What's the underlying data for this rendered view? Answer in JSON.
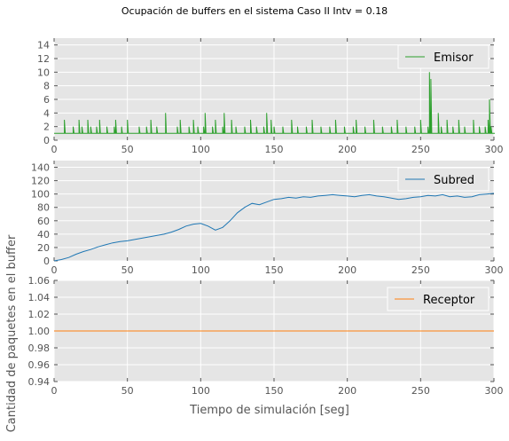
{
  "title": "Ocupación de buffers en el sistema Caso II Intv = 0.18",
  "xlabel": "Tiempo de simulación [seg]",
  "ylabel": "Cantidad de paquetes en el buffer",
  "chart_data": [
    {
      "type": "line",
      "series": [
        {
          "name": "Emisor",
          "color": "#2ca02c",
          "x": [
            0,
            6,
            7,
            8,
            12,
            13,
            14,
            15,
            17,
            18,
            19,
            20,
            22,
            23,
            24,
            25,
            26,
            28,
            29,
            30,
            31,
            35,
            36,
            37,
            40,
            41,
            42,
            44,
            45,
            46,
            48,
            49,
            50,
            52,
            53,
            55,
            58,
            60,
            62,
            63,
            65,
            66,
            67,
            68,
            70,
            74,
            75,
            76,
            78,
            80,
            84,
            85,
            86,
            88,
            90,
            92,
            93,
            94,
            95,
            96,
            98,
            99,
            100,
            102,
            103,
            104,
            106,
            108,
            110,
            112,
            114,
            115,
            116,
            118,
            120,
            121,
            122,
            124,
            126,
            128,
            130,
            132,
            133,
            134,
            136,
            138,
            140,
            142,
            143,
            144,
            145,
            146,
            147,
            148,
            150,
            152,
            154,
            156,
            158,
            160,
            162,
            163,
            164,
            166,
            168,
            170,
            172,
            174,
            176,
            178,
            180,
            182,
            184,
            186,
            188,
            190,
            192,
            194,
            196,
            198,
            200,
            202,
            204,
            206,
            208,
            210,
            212,
            214,
            216,
            218,
            220,
            222,
            224,
            226,
            228,
            230,
            232,
            234,
            236,
            238,
            240,
            242,
            244,
            246,
            248,
            250,
            252,
            254,
            255,
            256,
            257,
            258,
            260,
            262,
            264,
            266,
            268,
            270,
            272,
            274,
            276,
            278,
            280,
            282,
            284,
            286,
            288,
            290,
            292,
            294,
            295,
            296,
            297,
            298,
            300
          ],
          "y": [
            1,
            1,
            3,
            1,
            1,
            2,
            1,
            1,
            3,
            1,
            2,
            1,
            1,
            3,
            1,
            2,
            1,
            1,
            2,
            1,
            3,
            1,
            2,
            1,
            1,
            2,
            3,
            1,
            1,
            2,
            1,
            1,
            3,
            1,
            1,
            1,
            2,
            1,
            1,
            2,
            1,
            3,
            1,
            1,
            2,
            1,
            1,
            4,
            1,
            1,
            2,
            1,
            3,
            1,
            1,
            2,
            1,
            1,
            3,
            1,
            2,
            1,
            1,
            2,
            4,
            1,
            1,
            2,
            3,
            1,
            1,
            2,
            4,
            1,
            1,
            3,
            1,
            2,
            1,
            1,
            2,
            1,
            1,
            3,
            1,
            2,
            1,
            1,
            2,
            1,
            4,
            1,
            1,
            3,
            2,
            1,
            1,
            2,
            1,
            1,
            3,
            1,
            1,
            2,
            1,
            1,
            2,
            1,
            3,
            1,
            1,
            2,
            1,
            1,
            2,
            1,
            3,
            1,
            1,
            2,
            1,
            1,
            2,
            3,
            1,
            1,
            2,
            1,
            1,
            3,
            1,
            1,
            2,
            1,
            1,
            2,
            1,
            3,
            1,
            1,
            2,
            1,
            1,
            2,
            1,
            3,
            1,
            1,
            2,
            10,
            9,
            1,
            1,
            4,
            2,
            1,
            3,
            1,
            2,
            1,
            3,
            1,
            2,
            1,
            1,
            3,
            1,
            2,
            1,
            2,
            1,
            3,
            6,
            2,
            1
          ],
          "legend_position": "top-right"
        }
      ],
      "xlim": [
        0,
        300
      ],
      "ylim": [
        0,
        15
      ],
      "yticks": [
        0,
        2,
        4,
        6,
        8,
        10,
        12,
        14
      ],
      "xticks": [
        0,
        50,
        100,
        150,
        200,
        250,
        300
      ],
      "grid": true
    },
    {
      "type": "line",
      "series": [
        {
          "name": "Subred",
          "color": "#1f77b4",
          "x": [
            0,
            5,
            10,
            15,
            20,
            25,
            30,
            35,
            40,
            45,
            50,
            55,
            60,
            65,
            70,
            75,
            80,
            85,
            90,
            95,
            100,
            105,
            110,
            115,
            120,
            125,
            130,
            135,
            140,
            145,
            150,
            155,
            160,
            165,
            170,
            175,
            180,
            185,
            190,
            195,
            200,
            205,
            210,
            215,
            220,
            225,
            230,
            235,
            240,
            245,
            250,
            255,
            260,
            265,
            270,
            275,
            280,
            285,
            290,
            295,
            300
          ],
          "y": [
            0,
            2,
            5,
            10,
            14,
            17,
            21,
            24,
            27,
            29,
            30,
            32,
            34,
            36,
            38,
            40,
            43,
            47,
            52,
            55,
            56,
            52,
            46,
            50,
            60,
            72,
            80,
            86,
            84,
            88,
            92,
            93,
            95,
            94,
            96,
            95,
            97,
            98,
            99,
            98,
            97,
            96,
            98,
            99,
            97,
            96,
            94,
            92,
            93,
            95,
            96,
            98,
            97,
            99,
            96,
            97,
            95,
            96,
            99,
            100,
            101
          ],
          "legend_position": "top-right"
        }
      ],
      "xlim": [
        0,
        300
      ],
      "ylim": [
        0,
        150
      ],
      "yticks": [
        0,
        20,
        40,
        60,
        80,
        100,
        120,
        140
      ],
      "xticks": [
        0,
        50,
        100,
        150,
        200,
        250,
        300
      ],
      "grid": true
    },
    {
      "type": "line",
      "series": [
        {
          "name": "Receptor",
          "color": "#ff7f0e",
          "x": [
            0,
            300
          ],
          "y": [
            1,
            1
          ],
          "legend_position": "top-right"
        }
      ],
      "xlim": [
        0,
        300
      ],
      "ylim": [
        0.94,
        1.06
      ],
      "yticks": [
        0.94,
        0.96,
        0.98,
        1.0,
        1.02,
        1.04,
        1.06
      ],
      "ytick_labels": [
        "0.94",
        "0.96",
        "0.98",
        "1.00",
        "1.02",
        "1.04",
        "1.06"
      ],
      "xticks": [
        0,
        50,
        100,
        150,
        200,
        250,
        300
      ],
      "grid": true
    }
  ]
}
